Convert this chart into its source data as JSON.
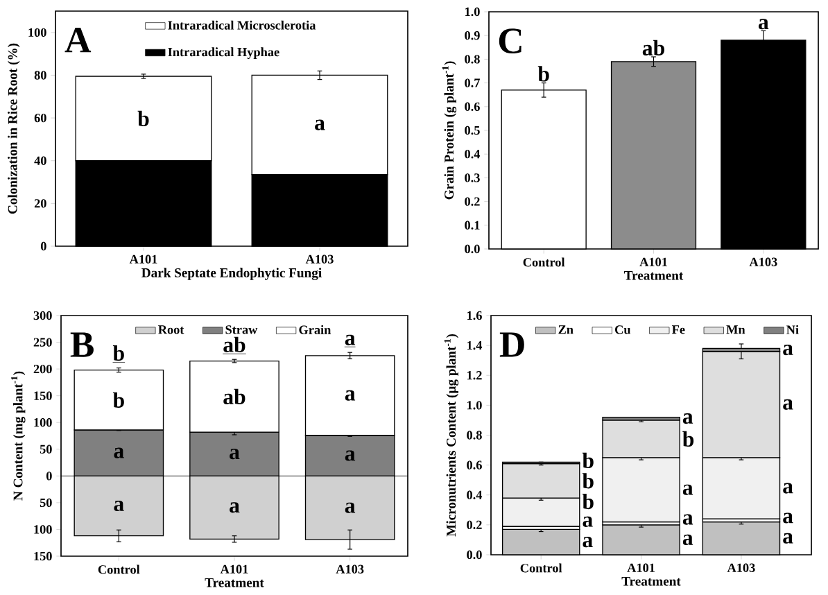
{
  "chart_data": [
    {
      "type": "bar",
      "stacked": true,
      "title": "A",
      "ylabel": "Colonization in Rice Root (%)",
      "xlabel": "Dark Septate Endophytic Fungi",
      "categories": [
        "A101",
        "A103"
      ],
      "series": [
        {
          "name": "Intraradical Hyphae",
          "color": "#000000",
          "values": [
            40,
            33.5
          ],
          "errors": [
            0.5,
            3.5
          ]
        },
        {
          "name": "Intraradical Microsclerotia",
          "color": "#ffffff",
          "values": [
            39.5,
            46.5
          ],
          "errors": [
            1,
            2
          ]
        }
      ],
      "ylim": [
        0,
        110
      ],
      "yticks": [
        0,
        20,
        40,
        60,
        80,
        100
      ],
      "legend": "top",
      "annotations": [
        "b",
        "a"
      ]
    },
    {
      "type": "bar",
      "title": "C",
      "ylabel": "Grain Protein (g plant$^{-1}$)",
      "xlabel": "Treatment",
      "categories": [
        "Control",
        "A101",
        "A103"
      ],
      "values": [
        0.67,
        0.79,
        0.88
      ],
      "colors": [
        "#ffffff",
        "#8c8c8c",
        "#000000"
      ],
      "errors": [
        0.03,
        0.02,
        0.04
      ],
      "ylim": [
        0,
        1
      ],
      "yticks": [
        {
          "value": 0,
          "label": "0.0"
        },
        0.1,
        0.2,
        0.3,
        0.4,
        0.5,
        0.6,
        0.7,
        0.8,
        0.9,
        {
          "value": 1,
          "label": "1.0"
        }
      ],
      "annotations": [
        "b",
        "ab",
        "a"
      ]
    },
    {
      "type": "bar",
      "stacked": true,
      "title": "B",
      "ylabel": "N Content (mg plant$^{-1}$)",
      "xlabel": "Treatment",
      "categories": [
        "Control",
        "A101",
        "A103"
      ],
      "series": [
        {
          "name": "Root",
          "color": "#d0d0d0",
          "values": [
            -112,
            -118,
            -119
          ],
          "errors": [
            11,
            6,
            18
          ]
        },
        {
          "name": "Straw",
          "color": "#808080",
          "values": [
            86,
            82,
            76
          ],
          "errors": [
            1,
            5,
            2
          ]
        },
        {
          "name": "Grain",
          "color": "#ffffff",
          "values": [
            112,
            133,
            149
          ],
          "errors": [
            4,
            3,
            6
          ]
        }
      ],
      "ylim": [
        -150,
        300
      ],
      "yticks": [
        {
          "value": -150,
          "label": "150"
        },
        {
          "value": -100,
          "label": "100"
        },
        {
          "value": -50,
          "label": "50"
        },
        0,
        50,
        100,
        150,
        200,
        250,
        300
      ],
      "ref_lines": [
        {
          "axis": "y",
          "value": 0
        }
      ],
      "legend": "top",
      "annotations": [
        "b",
        "b",
        "a",
        "a",
        "ab",
        "ab",
        "a",
        "a",
        "a",
        "a",
        "a",
        "a"
      ]
    },
    {
      "type": "bar",
      "stacked": true,
      "title": "D",
      "ylabel": "Micronutrients Content (µg plant$^{-1}$)",
      "xlabel": "Treatment",
      "categories": [
        "Control",
        "A101",
        "A103"
      ],
      "series": [
        {
          "name": "Zn",
          "color": "#c0c0c0",
          "values": [
            0.17,
            0.2,
            0.22
          ],
          "errors": [
            0.015,
            0.015,
            0.015
          ]
        },
        {
          "name": "Cu",
          "color": "#ffffff",
          "values": [
            0.02,
            0.02,
            0.02
          ]
        },
        {
          "name": "Fe",
          "color": "#f0f0f0",
          "values": [
            0.19,
            0.43,
            0.41
          ],
          "errors": [
            0.015,
            0.015,
            0.015
          ]
        },
        {
          "name": "Mn",
          "color": "#dedede",
          "values": [
            0.23,
            0.25,
            0.71
          ],
          "errors": [
            0.01,
            0.01,
            0.05
          ]
        },
        {
          "name": "Ni",
          "color": "#808080",
          "values": [
            0.01,
            0.02,
            0.02
          ]
        }
      ],
      "ylim": [
        0,
        1.6
      ],
      "yticks": [
        {
          "value": 0,
          "label": "0.0"
        },
        0.2,
        0.4,
        0.6,
        0.8,
        {
          "value": 1,
          "label": "1.0"
        },
        1.2,
        1.4,
        1.6
      ],
      "legend": "top right",
      "annotations": [
        "b",
        "b",
        "b",
        "a",
        "a",
        "a",
        "b",
        "a",
        "a",
        "a",
        "a",
        "a",
        "a",
        "a",
        "a"
      ]
    }
  ]
}
